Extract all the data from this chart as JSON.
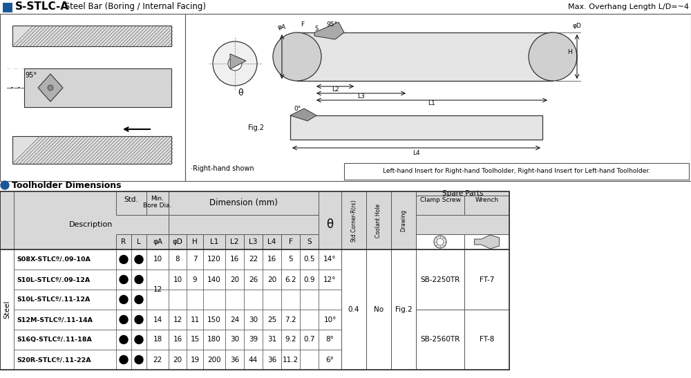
{
  "title_bold": "S-STLC-A",
  "title_normal": " Steel Bar (Boring / Internal Facing)",
  "title_right": "Max. Overhang Length L/D=~4",
  "section_title": "Toolholder Dimensions",
  "note_left": "·Right-hand shown",
  "note_right": "Left-hand Insert for Right-hand Toolholder, Right-hand Insert for Left-hand Toolholder.",
  "title_bar_color": "#1a5796",
  "bg_color": "#ffffff",
  "gray_header": "#d8d8d8",
  "left_merged": "Steel",
  "rows": [
    {
      "desc": "S08X-STLCº/.09-10A",
      "std_r": true,
      "std_l": true,
      "phiA": "10",
      "phiD": "8",
      "H": "7",
      "L1": "120",
      "L2": "16",
      "L3": "22",
      "L4": "16",
      "F": "5",
      "S": "0.5",
      "theta": "14°"
    },
    {
      "desc": "S10L-STLCº/.09-12A",
      "std_r": true,
      "std_l": true,
      "phiA": "",
      "phiD": "10",
      "H": "9",
      "L1": "140",
      "L2": "20",
      "L3": "26",
      "L4": "20",
      "F": "6.2",
      "S": "0.9",
      "theta": "12°"
    },
    {
      "desc": "S10L-STLCº/.11-12A",
      "std_r": true,
      "std_l": true,
      "phiA": "",
      "phiD": "",
      "H": "",
      "L1": "",
      "L2": "",
      "L3": "",
      "L4": "",
      "F": "",
      "S": "",
      "theta": ""
    },
    {
      "desc": "S12M-STLCº/.11-14A",
      "std_r": true,
      "std_l": true,
      "phiA": "14",
      "phiD": "12",
      "H": "11",
      "L1": "150",
      "L2": "24",
      "L3": "30",
      "L4": "25",
      "F": "7.2",
      "S": "",
      "theta": "10°"
    },
    {
      "desc": "S16Q-STLCº/.11-18A",
      "std_r": true,
      "std_l": true,
      "phiA": "18",
      "phiD": "16",
      "H": "15",
      "L1": "180",
      "L2": "30",
      "L3": "39",
      "L4": "31",
      "F": "9.2",
      "S": "0.7",
      "theta": "8°"
    },
    {
      "desc": "S20R-STLCº/.11-22A",
      "std_r": true,
      "std_l": true,
      "phiA": "22",
      "phiD": "20",
      "H": "19",
      "L1": "200",
      "L2": "36",
      "L3": "44",
      "L4": "36",
      "F": "11.2",
      "S": "",
      "theta": "6°"
    }
  ],
  "merged": {
    "phiA_rows12": "12",
    "corner_r": "0.4",
    "coolant": "No",
    "drawing": "Fig.2",
    "clamp_top": "SB-2250TR",
    "wrench_top": "FT-7",
    "clamp_bot": "SB-2560TR",
    "wrench_bot": "FT-8"
  }
}
